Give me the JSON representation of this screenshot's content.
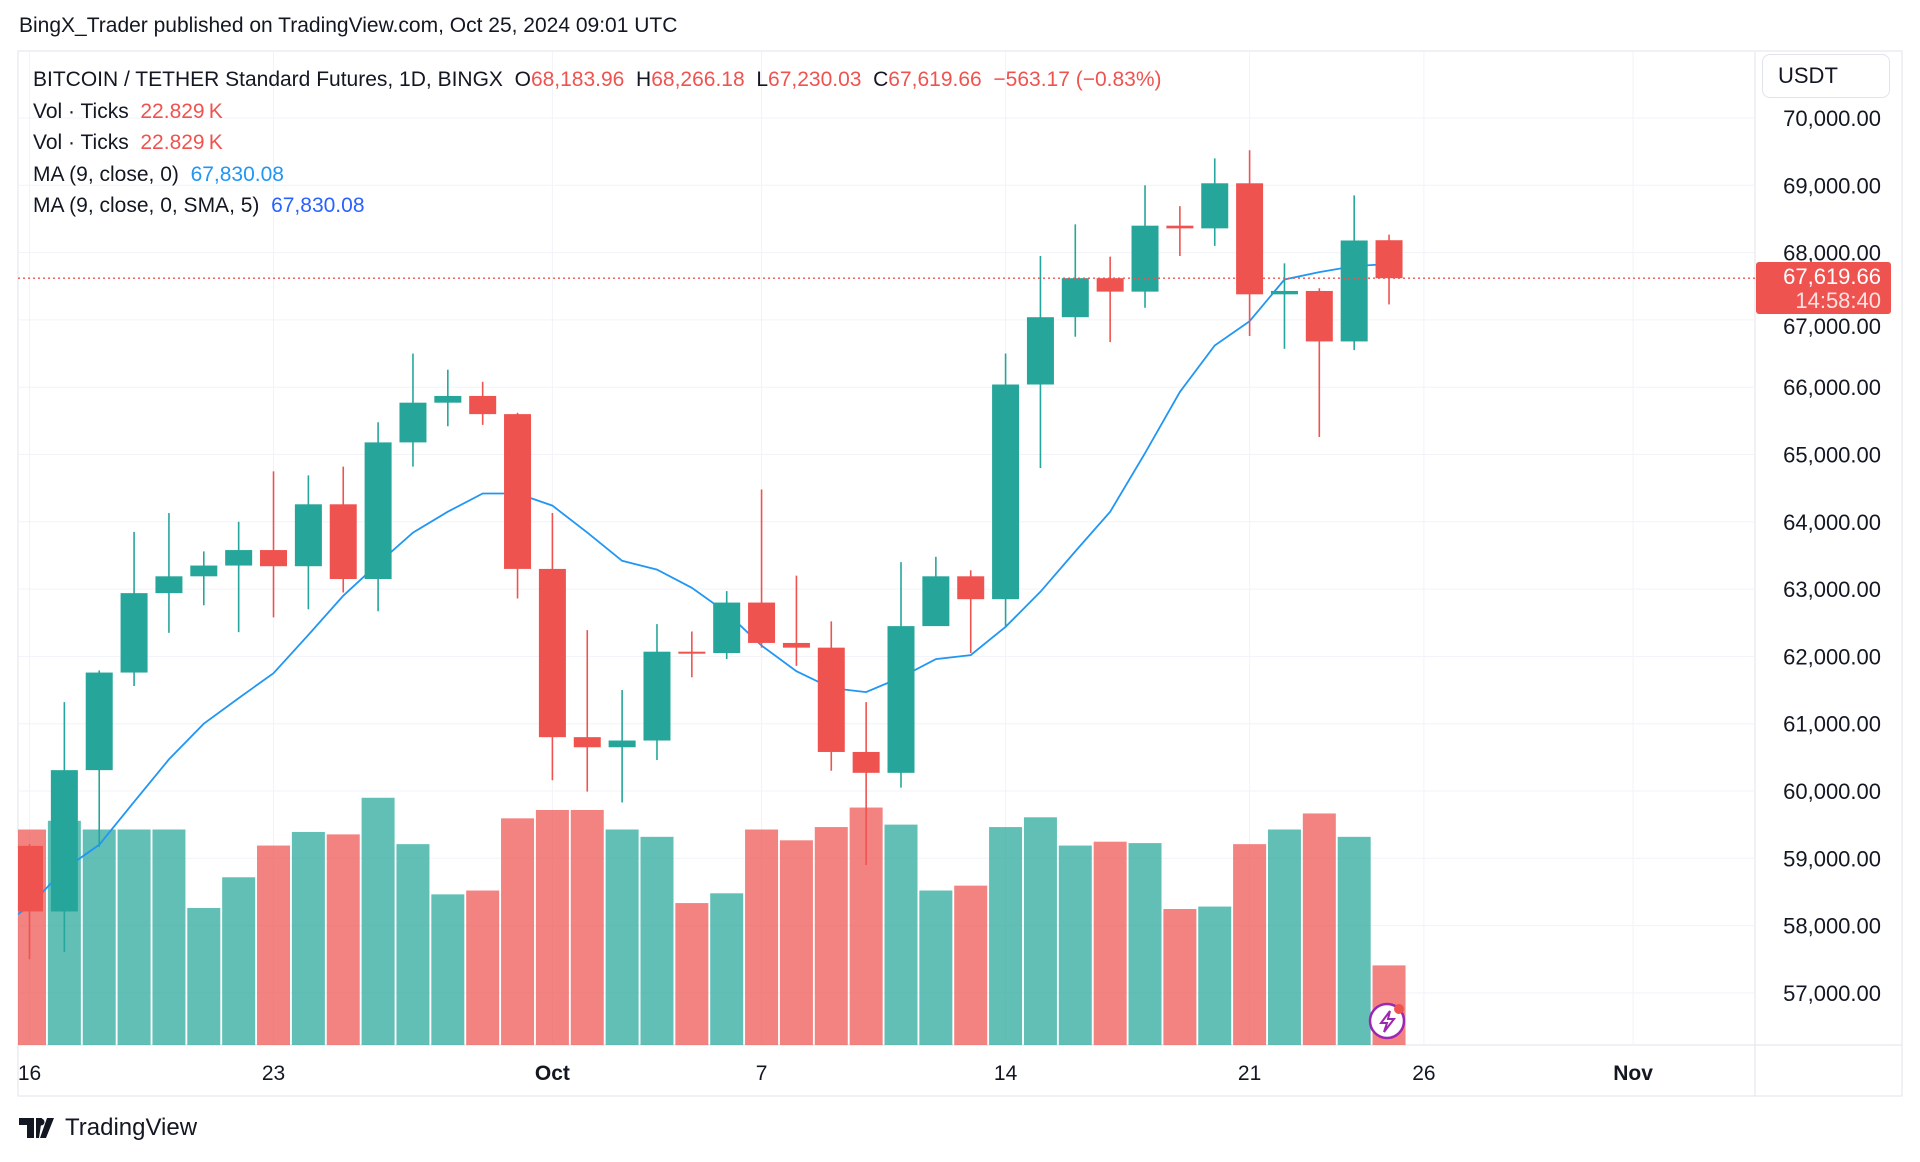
{
  "publisher_line": "BingX_Trader published on TradingView.com, Oct 25, 2024 09:01 UTC",
  "legend": {
    "symbol": "BITCOIN / TETHER Standard Futures, 1D, BINGX",
    "o_label": "O",
    "o": "68,183.96",
    "h_label": "H",
    "h": "68,266.18",
    "l_label": "L",
    "l": "67,230.03",
    "c_label": "C",
    "c": "67,619.66",
    "change": "−563.17 (−0.83%)",
    "vol1_label": "Vol · Ticks",
    "vol1": "22.829 K",
    "vol2_label": "Vol · Ticks",
    "vol2": "22.829 K",
    "ma1_label": "MA (9, close, 0)",
    "ma1": "67,830.08",
    "ma2_label": "MA (9, close, 0, SMA, 5)",
    "ma2": "67,830.08"
  },
  "currency_button": "USDT",
  "last_price_label": {
    "price": "67,619.66",
    "countdown": "14:58:40"
  },
  "brand": "TradingView",
  "colors": {
    "up": "#26a69a",
    "down": "#ef5350",
    "ma": "#2196f3",
    "grid": "#f0f3fa"
  },
  "chart_data": {
    "type": "candlestick",
    "ylim": [
      56300,
      70400
    ],
    "y_ticks": [
      "57,000.00",
      "58,000.00",
      "59,000.00",
      "60,000.00",
      "61,000.00",
      "62,000.00",
      "63,000.00",
      "64,000.00",
      "65,000.00",
      "66,000.00",
      "67,000.00",
      "68,000.00",
      "69,000.00",
      "70,000.00"
    ],
    "y_tick_values": [
      57000,
      58000,
      59000,
      60000,
      61000,
      62000,
      63000,
      64000,
      65000,
      66000,
      67000,
      68000,
      69000,
      70000
    ],
    "x_ticks": [
      {
        "label": "16",
        "date": "2024-09-16"
      },
      {
        "label": "23",
        "date": "2024-09-23"
      },
      {
        "label": "Oct",
        "date": "2024-10-01",
        "bold": true
      },
      {
        "label": "7",
        "date": "2024-10-07"
      },
      {
        "label": "14",
        "date": "2024-10-14"
      },
      {
        "label": "21",
        "date": "2024-10-21"
      },
      {
        "label": "26",
        "date": "2024-10-26"
      },
      {
        "label": "Nov",
        "date": "2024-11-01",
        "bold": true
      }
    ],
    "columns": [
      "date",
      "open",
      "high",
      "low",
      "close",
      "volume_k"
    ],
    "candles": [
      [
        "2024-09-16",
        59185,
        59210,
        57500,
        58210,
        61.8
      ],
      [
        "2024-09-17",
        58210,
        61320,
        57610,
        60310,
        64.3
      ],
      [
        "2024-09-18",
        60310,
        61790,
        59170,
        61760,
        61.8
      ],
      [
        "2024-09-19",
        61760,
        63850,
        61560,
        62940,
        61.8
      ],
      [
        "2024-09-20",
        62940,
        64130,
        62350,
        63190,
        61.8
      ],
      [
        "2024-09-21",
        63190,
        63560,
        62760,
        63350,
        39.3
      ],
      [
        "2024-09-22",
        63350,
        64000,
        62360,
        63580,
        48.1
      ],
      [
        "2024-09-23",
        63580,
        64750,
        62580,
        63340,
        57.2
      ],
      [
        "2024-09-24",
        63340,
        64690,
        62700,
        64260,
        61.1
      ],
      [
        "2024-09-25",
        64260,
        64820,
        62950,
        63150,
        60.4
      ],
      [
        "2024-09-26",
        63150,
        65480,
        62670,
        65180,
        70.9
      ],
      [
        "2024-09-27",
        65180,
        66500,
        64820,
        65770,
        57.6
      ],
      [
        "2024-09-28",
        65770,
        66260,
        65420,
        65870,
        43.2
      ],
      [
        "2024-09-29",
        65870,
        66080,
        65440,
        65600,
        44.3
      ],
      [
        "2024-09-30",
        65600,
        65620,
        62860,
        63300,
        65.0
      ],
      [
        "2024-10-01",
        63300,
        64130,
        60160,
        60800,
        67.4
      ],
      [
        "2024-10-02",
        60800,
        62390,
        59990,
        60650,
        67.4
      ],
      [
        "2024-10-03",
        60650,
        61500,
        59830,
        60750,
        61.8
      ],
      [
        "2024-10-04",
        60750,
        62480,
        60460,
        62070,
        59.7
      ],
      [
        "2024-10-05",
        62070,
        62370,
        61690,
        62050,
        40.7
      ],
      [
        "2024-10-06",
        62050,
        62970,
        61960,
        62800,
        43.5
      ],
      [
        "2024-10-07",
        62800,
        64480,
        62130,
        62200,
        61.8
      ],
      [
        "2024-10-08",
        62200,
        63200,
        61860,
        62130,
        58.7
      ],
      [
        "2024-10-09",
        62130,
        62520,
        60300,
        60580,
        62.5
      ],
      [
        "2024-10-10",
        60580,
        61320,
        58900,
        60270,
        68.1
      ],
      [
        "2024-10-11",
        60270,
        63400,
        60050,
        62450,
        63.2
      ],
      [
        "2024-10-12",
        62450,
        63480,
        62460,
        63190,
        44.3
      ],
      [
        "2024-10-13",
        63190,
        63280,
        62050,
        62850,
        45.7
      ],
      [
        "2024-10-14",
        62850,
        66500,
        62450,
        66040,
        62.5
      ],
      [
        "2024-10-15",
        66040,
        67950,
        64800,
        67040,
        65.3
      ],
      [
        "2024-10-16",
        67040,
        68420,
        66750,
        67620,
        57.2
      ],
      [
        "2024-10-17",
        67620,
        67940,
        66670,
        67420,
        58.3
      ],
      [
        "2024-10-18",
        67420,
        69000,
        67180,
        68400,
        57.9
      ],
      [
        "2024-10-19",
        68400,
        68690,
        67950,
        68360,
        39.0
      ],
      [
        "2024-10-20",
        68360,
        69400,
        68100,
        69030,
        39.7
      ],
      [
        "2024-10-21",
        69030,
        69520,
        66760,
        67380,
        57.6
      ],
      [
        "2024-10-22",
        67380,
        67840,
        66570,
        67430,
        61.8
      ],
      [
        "2024-10-23",
        67430,
        67470,
        65260,
        66680,
        66.4
      ],
      [
        "2024-10-24",
        66680,
        68850,
        66550,
        68180,
        59.7
      ],
      [
        "2024-10-25",
        68183.96,
        68266.18,
        67230.03,
        67619.66,
        22.829
      ]
    ],
    "ma_9": [
      [
        "2024-09-15",
        57930
      ],
      [
        "2024-09-16",
        58290
      ],
      [
        "2024-09-17",
        58840
      ],
      [
        "2024-09-18",
        59200
      ],
      [
        "2024-09-19",
        59840
      ],
      [
        "2024-09-20",
        60470
      ],
      [
        "2024-09-21",
        61000
      ],
      [
        "2024-09-22",
        61380
      ],
      [
        "2024-09-23",
        61750
      ],
      [
        "2024-09-24",
        62320
      ],
      [
        "2024-09-25",
        62900
      ],
      [
        "2024-09-26",
        63380
      ],
      [
        "2024-09-27",
        63840
      ],
      [
        "2024-09-28",
        64150
      ],
      [
        "2024-09-29",
        64420
      ],
      [
        "2024-09-30",
        64420
      ],
      [
        "2024-10-01",
        64240
      ],
      [
        "2024-10-02",
        63840
      ],
      [
        "2024-10-03",
        63420
      ],
      [
        "2024-10-04",
        63290
      ],
      [
        "2024-10-05",
        63020
      ],
      [
        "2024-10-06",
        62650
      ],
      [
        "2024-10-07",
        62160
      ],
      [
        "2024-10-08",
        61780
      ],
      [
        "2024-10-09",
        61530
      ],
      [
        "2024-10-10",
        61470
      ],
      [
        "2024-10-11",
        61690
      ],
      [
        "2024-10-12",
        61960
      ],
      [
        "2024-10-13",
        62020
      ],
      [
        "2024-10-14",
        62440
      ],
      [
        "2024-10-15",
        62960
      ],
      [
        "2024-10-16",
        63560
      ],
      [
        "2024-10-17",
        64150
      ],
      [
        "2024-10-18",
        65020
      ],
      [
        "2024-10-19",
        65930
      ],
      [
        "2024-10-20",
        66620
      ],
      [
        "2024-10-21",
        66980
      ],
      [
        "2024-10-22",
        67600
      ],
      [
        "2024-10-23",
        67710
      ],
      [
        "2024-10-24",
        67800
      ],
      [
        "2024-10-25",
        67830
      ]
    ],
    "last_price": 67619.66,
    "grid": true
  }
}
